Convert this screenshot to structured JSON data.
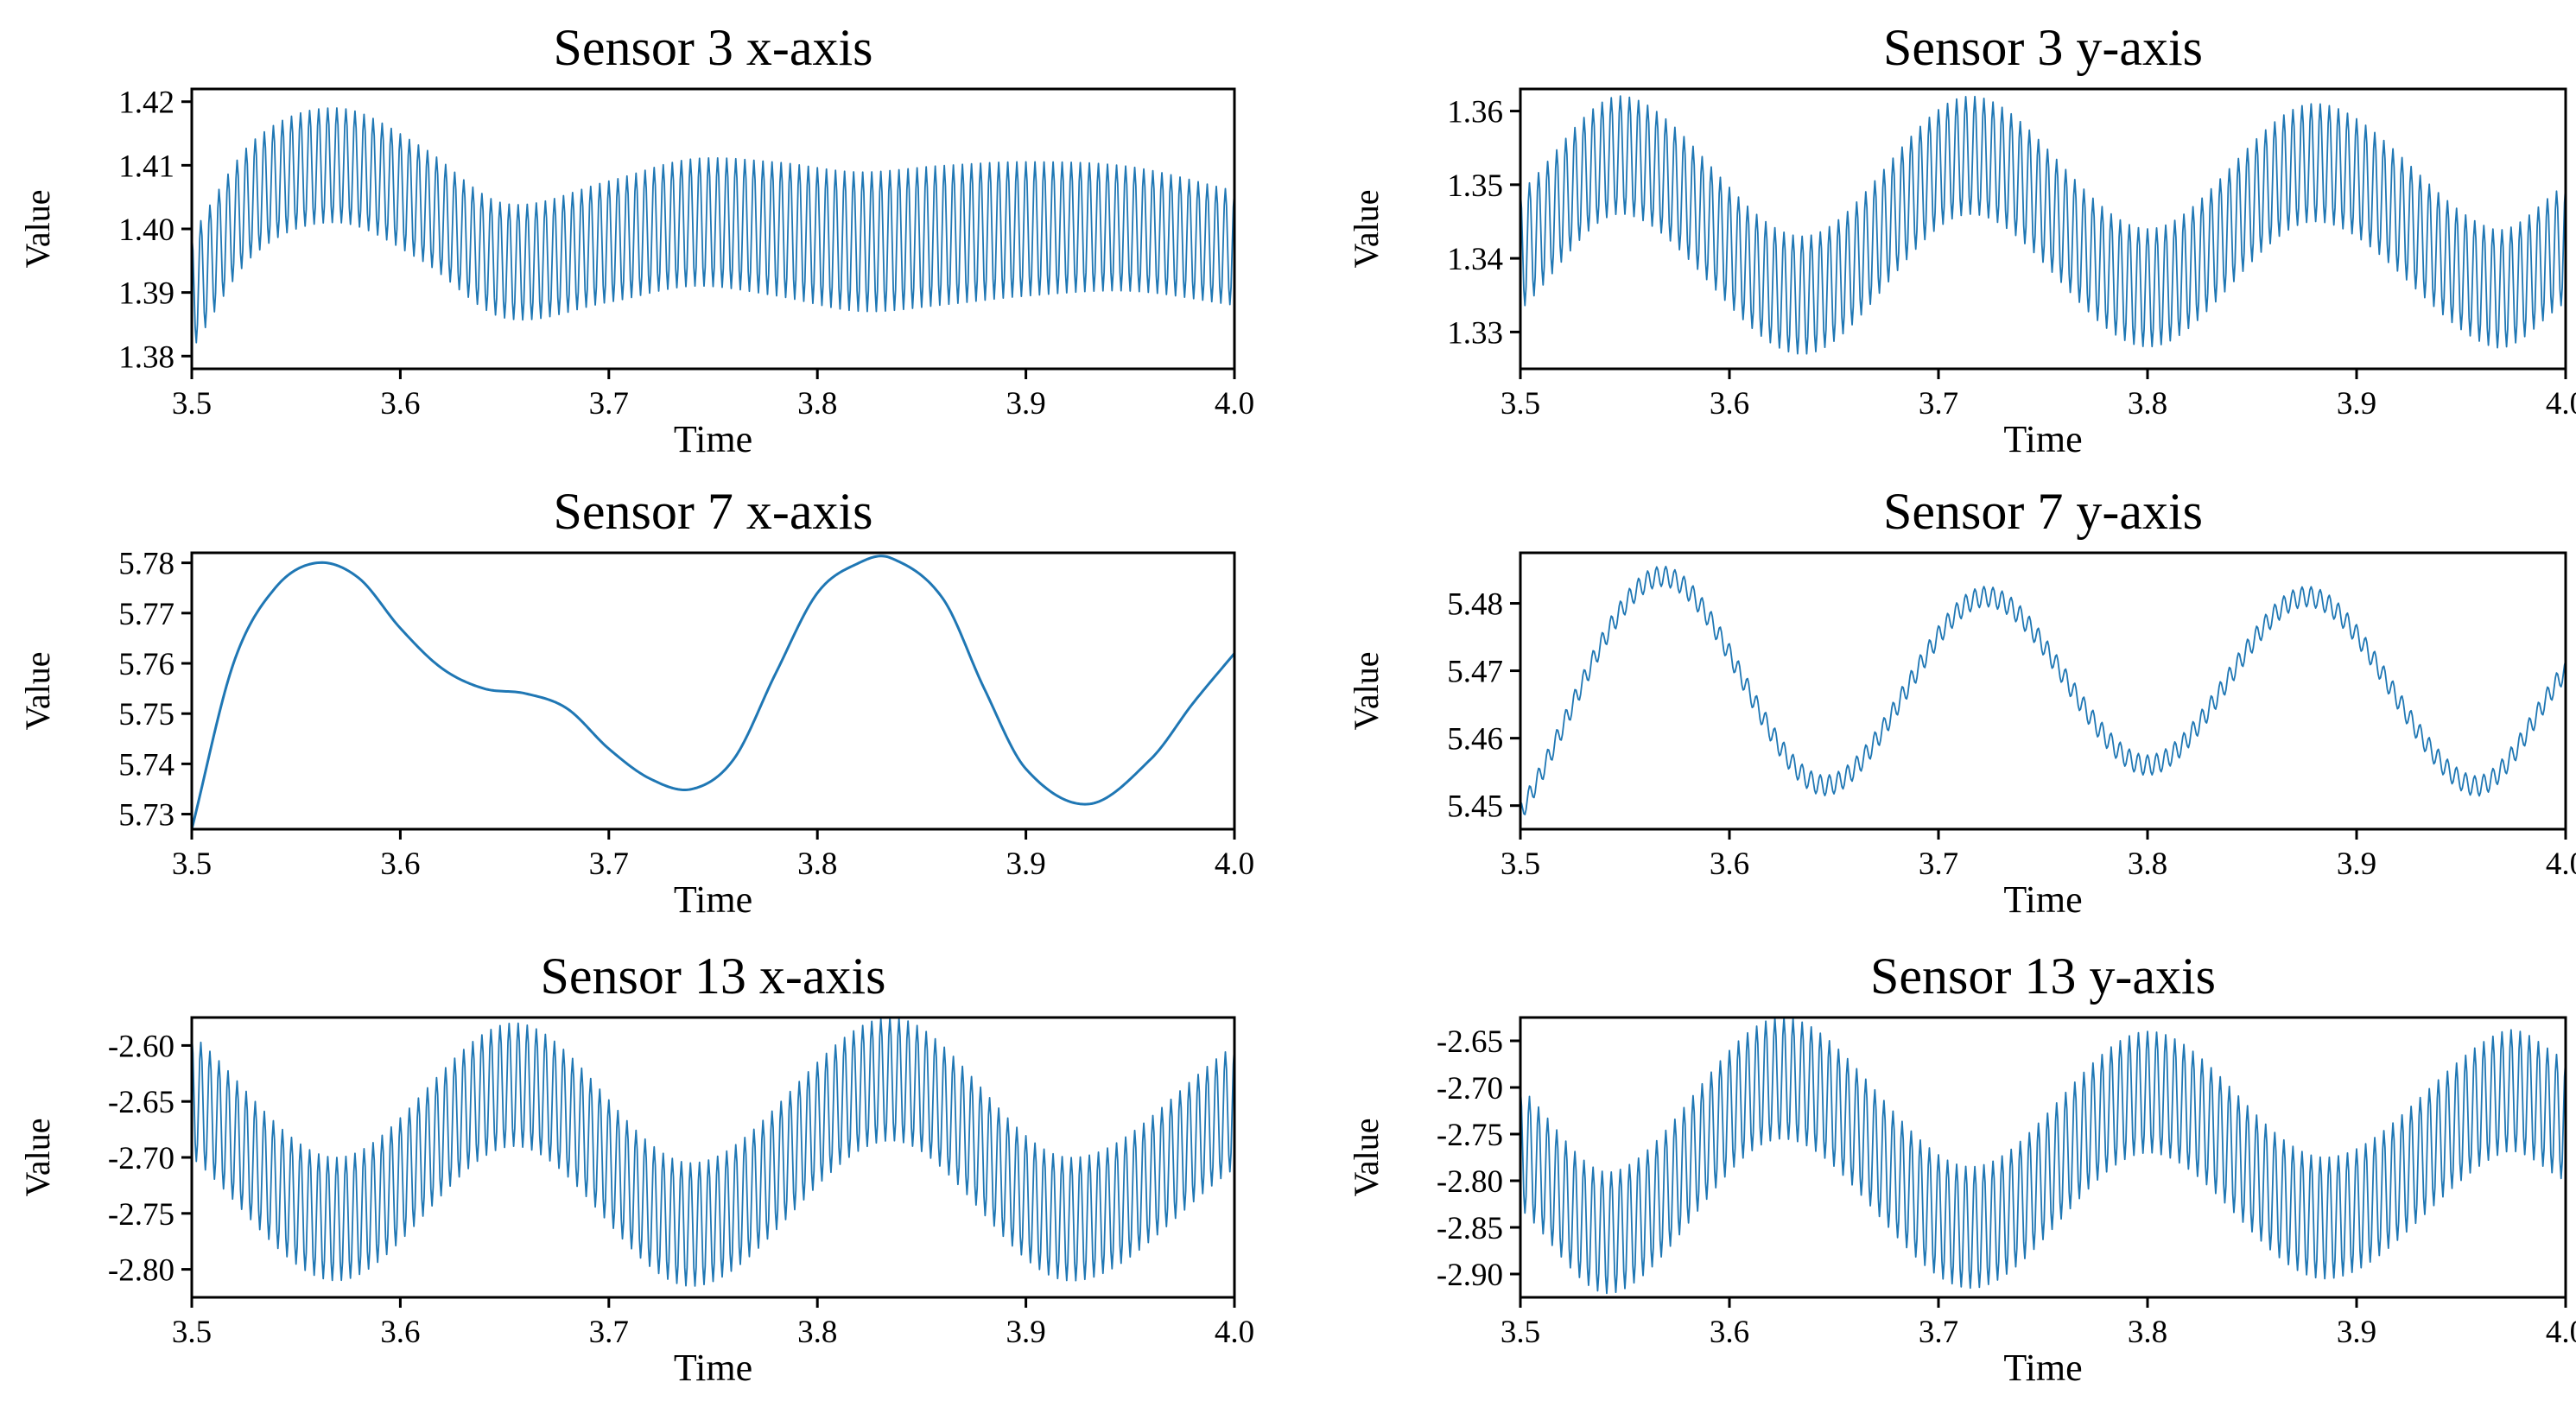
{
  "figure_colors": {
    "line": "#1f77b4",
    "frame": "#000000",
    "background": "#ffffff"
  },
  "chart_data": [
    {
      "id": "s3x",
      "type": "line",
      "title": "Sensor 3 x-axis",
      "xlabel": "Time",
      "ylabel": "Value",
      "xlim": [
        3.5,
        4.0
      ],
      "ylim": [
        1.378,
        1.422
      ],
      "xticks": [
        3.5,
        3.6,
        3.7,
        3.8,
        3.9,
        4.0
      ],
      "xtick_labels": [
        "3.5",
        "3.6",
        "3.7",
        "3.8",
        "3.9",
        "4.0"
      ],
      "yticks": [
        1.38,
        1.39,
        1.4,
        1.41,
        1.42
      ],
      "ytick_labels": [
        "1.38",
        "1.39",
        "1.40",
        "1.41",
        "1.42"
      ],
      "grid": false,
      "series": [
        {
          "name": "Sensor 3 x-axis",
          "oscillation_cycles": 115,
          "center": {
            "t": [
              3.5,
              3.53,
              3.57,
              3.61,
              3.65,
              3.7,
              3.74,
              3.78,
              3.82,
              3.86,
              3.9,
              3.95,
              4.0
            ],
            "v": [
              1.39,
              1.405,
              1.41,
              1.404,
              1.395,
              1.398,
              1.401,
              1.4,
              1.398,
              1.399,
              1.4,
              1.4,
              1.397
            ]
          },
          "amplitude": {
            "t": [
              3.5,
              3.57,
              3.65,
              3.74,
              3.85,
              4.0
            ],
            "v": [
              0.009,
              0.009,
              0.009,
              0.01,
              0.011,
              0.009
            ]
          }
        }
      ]
    },
    {
      "id": "s3y",
      "type": "line",
      "title": "Sensor 3 y-axis",
      "xlabel": "Time",
      "ylabel": "Value",
      "xlim": [
        3.5,
        4.0
      ],
      "ylim": [
        1.325,
        1.363
      ],
      "xticks": [
        3.5,
        3.6,
        3.7,
        3.8,
        3.9,
        4.0
      ],
      "xtick_labels": [
        "3.5",
        "3.6",
        "3.7",
        "3.8",
        "3.9",
        "4.0"
      ],
      "yticks": [
        1.33,
        1.34,
        1.35,
        1.36
      ],
      "ytick_labels": [
        "1.33",
        "1.34",
        "1.35",
        "1.36"
      ],
      "grid": false,
      "series": [
        {
          "name": "Sensor 3 y-axis",
          "oscillation_cycles": 115,
          "center": {
            "t": [
              3.5,
              3.55,
              3.635,
              3.715,
              3.8,
              3.88,
              3.965,
              4.0
            ],
            "v": [
              1.341,
              1.354,
              1.335,
              1.354,
              1.336,
              1.353,
              1.336,
              1.342
            ]
          },
          "amplitude": {
            "t": [
              3.5,
              4.0
            ],
            "v": [
              0.008,
              0.008
            ]
          }
        }
      ]
    },
    {
      "id": "s7x",
      "type": "line",
      "title": "Sensor 7 x-axis",
      "xlabel": "Time",
      "ylabel": "Value",
      "xlim": [
        3.5,
        4.0
      ],
      "ylim": [
        5.727,
        5.782
      ],
      "xticks": [
        3.5,
        3.6,
        3.7,
        3.8,
        3.9,
        4.0
      ],
      "xtick_labels": [
        "3.5",
        "3.6",
        "3.7",
        "3.8",
        "3.9",
        "4.0"
      ],
      "yticks": [
        5.73,
        5.74,
        5.75,
        5.76,
        5.77,
        5.78
      ],
      "ytick_labels": [
        "5.73",
        "5.74",
        "5.75",
        "5.76",
        "5.77",
        "5.78"
      ],
      "grid": false,
      "series": [
        {
          "name": "Sensor 7 x-axis",
          "oscillation_cycles": 0,
          "center": {
            "t": [
              3.5,
              3.52,
              3.54,
              3.56,
              3.58,
              3.6,
              3.62,
              3.64,
              3.66,
              3.68,
              3.7,
              3.72,
              3.74,
              3.76,
              3.78,
              3.8,
              3.82,
              3.835,
              3.86,
              3.88,
              3.9,
              3.93,
              3.96,
              3.98,
              4.0
            ],
            "v": [
              5.727,
              5.76,
              5.775,
              5.78,
              5.777,
              5.767,
              5.759,
              5.755,
              5.754,
              5.751,
              5.743,
              5.737,
              5.735,
              5.741,
              5.758,
              5.774,
              5.78,
              5.781,
              5.773,
              5.755,
              5.739,
              5.732,
              5.741,
              5.752,
              5.762
            ]
          },
          "amplitude": {
            "t": [
              3.5,
              4.0
            ],
            "v": [
              0,
              0
            ]
          }
        }
      ]
    },
    {
      "id": "s7y",
      "type": "line",
      "title": "Sensor 7 y-axis",
      "xlabel": "Time",
      "ylabel": "Value",
      "xlim": [
        3.5,
        4.0
      ],
      "ylim": [
        5.4465,
        5.4875
      ],
      "xticks": [
        3.5,
        3.6,
        3.7,
        3.8,
        3.9,
        4.0
      ],
      "xtick_labels": [
        "3.5",
        "3.6",
        "3.7",
        "3.8",
        "3.9",
        "4.0"
      ],
      "yticks": [
        5.45,
        5.46,
        5.47,
        5.48
      ],
      "ytick_labels": [
        "5.45",
        "5.46",
        "5.47",
        "5.48"
      ],
      "grid": false,
      "series": [
        {
          "name": "Sensor 7 y-axis",
          "oscillation_cycles": 115,
          "center": {
            "t": [
              3.5,
              3.567,
              3.645,
              3.722,
              3.8,
              3.877,
              3.955,
              4.0
            ],
            "v": [
              5.449,
              5.484,
              5.453,
              5.481,
              5.456,
              5.481,
              5.453,
              5.47
            ]
          },
          "amplitude": {
            "t": [
              3.5,
              4.0
            ],
            "v": [
              0.0015,
              0.0015
            ]
          }
        }
      ]
    },
    {
      "id": "s13x",
      "type": "line",
      "title": "Sensor 13 x-axis",
      "xlabel": "Time",
      "ylabel": "Value",
      "xlim": [
        3.5,
        4.0
      ],
      "ylim": [
        -2.825,
        -2.575
      ],
      "xticks": [
        3.5,
        3.6,
        3.7,
        3.8,
        3.9,
        4.0
      ],
      "xtick_labels": [
        "3.5",
        "3.6",
        "3.7",
        "3.8",
        "3.9",
        "4.0"
      ],
      "yticks": [
        -2.8,
        -2.75,
        -2.7,
        -2.65,
        -2.6
      ],
      "ytick_labels": [
        "-2.80",
        "-2.75",
        "-2.70",
        "-2.65",
        "-2.60"
      ],
      "grid": false,
      "series": [
        {
          "name": "Sensor 13 x-axis",
          "oscillation_cycles": 115,
          "center": {
            "t": [
              3.5,
              3.57,
              3.655,
              3.74,
              3.835,
              3.92,
              4.0
            ],
            "v": [
              -2.645,
              -2.755,
              -2.635,
              -2.76,
              -2.63,
              -2.755,
              -2.655
            ]
          },
          "amplitude": {
            "t": [
              3.5,
              4.0
            ],
            "v": [
              0.055,
              0.055
            ]
          }
        }
      ]
    },
    {
      "id": "s13y",
      "type": "line",
      "title": "Sensor 13 y-axis",
      "xlabel": "Time",
      "ylabel": "Value",
      "xlim": [
        3.5,
        4.0
      ],
      "ylim": [
        -2.925,
        -2.625
      ],
      "xticks": [
        3.5,
        3.6,
        3.7,
        3.8,
        3.9,
        4.0
      ],
      "xtick_labels": [
        "3.5",
        "3.6",
        "3.7",
        "3.8",
        "3.9",
        "4.0"
      ],
      "yticks": [
        -2.9,
        -2.85,
        -2.8,
        -2.75,
        -2.7,
        -2.65
      ],
      "ytick_labels": [
        "-2.90",
        "-2.85",
        "-2.80",
        "-2.75",
        "-2.70",
        "-2.65"
      ],
      "grid": false,
      "series": [
        {
          "name": "Sensor 13 y-axis",
          "oscillation_cycles": 115,
          "center": {
            "t": [
              3.5,
              3.545,
              3.625,
              3.715,
              3.8,
              3.885,
              3.97,
              4.0
            ],
            "v": [
              -2.765,
              -2.855,
              -2.69,
              -2.85,
              -2.705,
              -2.84,
              -2.705,
              -2.735
            ]
          },
          "amplitude": {
            "t": [
              3.5,
              4.0
            ],
            "v": [
              0.065,
              0.065
            ]
          }
        }
      ]
    }
  ]
}
